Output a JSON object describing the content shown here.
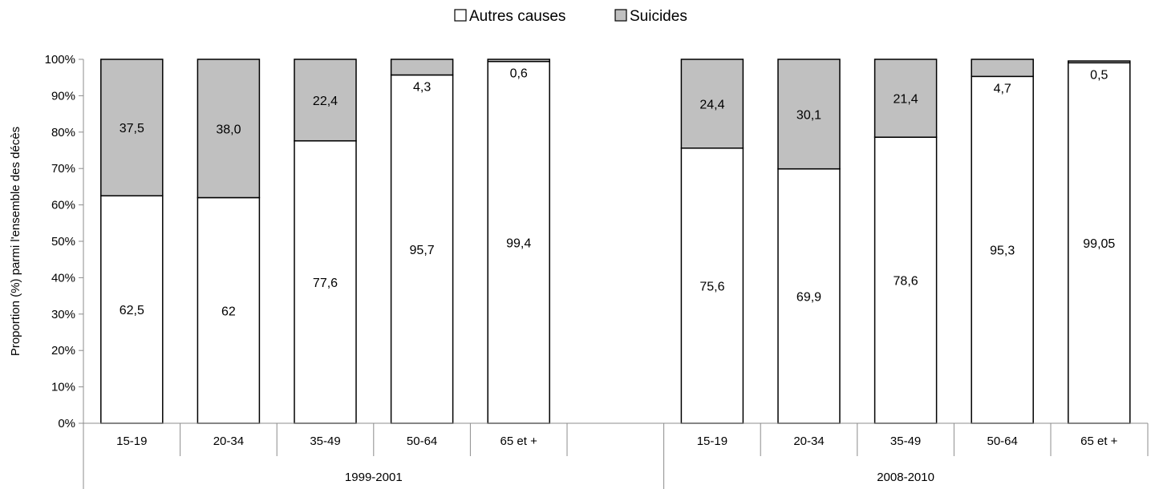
{
  "chart_data": {
    "type": "bar",
    "stacked": true,
    "legend": {
      "position": "top",
      "entries": [
        {
          "label": "Autres causes",
          "color": "#ffffff"
        },
        {
          "label": "Suicides",
          "color": "#c0c0c0"
        }
      ]
    },
    "ylabel": "Proportion (%) parmi l'ensemble des décès",
    "ylim": [
      0,
      100
    ],
    "yticks": [
      "0%",
      "10%",
      "20%",
      "30%",
      "40%",
      "50%",
      "60%",
      "70%",
      "80%",
      "90%",
      "100%"
    ],
    "groups": [
      {
        "label": "1999-2001",
        "categories": [
          "15-19",
          "20-34",
          "35-49",
          "50-64",
          "65 et +",
          ""
        ],
        "series": [
          {
            "name": "Autres causes",
            "values": [
              62.5,
              62,
              77.6,
              95.7,
              99.4,
              null
            ],
            "labels": [
              "62,5",
              "62",
              "77,6",
              "95,7",
              "99,4",
              ""
            ]
          },
          {
            "name": "Suicides",
            "values": [
              37.5,
              38.0,
              22.4,
              4.3,
              0.6,
              null
            ],
            "labels": [
              "37,5",
              "38,0",
              "22,4",
              "4,3",
              "0,6",
              ""
            ]
          }
        ]
      },
      {
        "label": "2008-2010",
        "categories": [
          "15-19",
          "20-34",
          "35-49",
          "50-64",
          "65 et +"
        ],
        "series": [
          {
            "name": "Autres causes",
            "values": [
              75.6,
              69.9,
              78.6,
              95.3,
              99.05
            ],
            "labels": [
              "75,6",
              "69,9",
              "78,6",
              "95,3",
              "99,05"
            ]
          },
          {
            "name": "Suicides",
            "values": [
              24.4,
              30.1,
              21.4,
              4.7,
              0.5
            ],
            "labels": [
              "24,4",
              "30,1",
              "21,4",
              "4,7",
              "0,5"
            ]
          }
        ]
      }
    ],
    "grid": false
  }
}
